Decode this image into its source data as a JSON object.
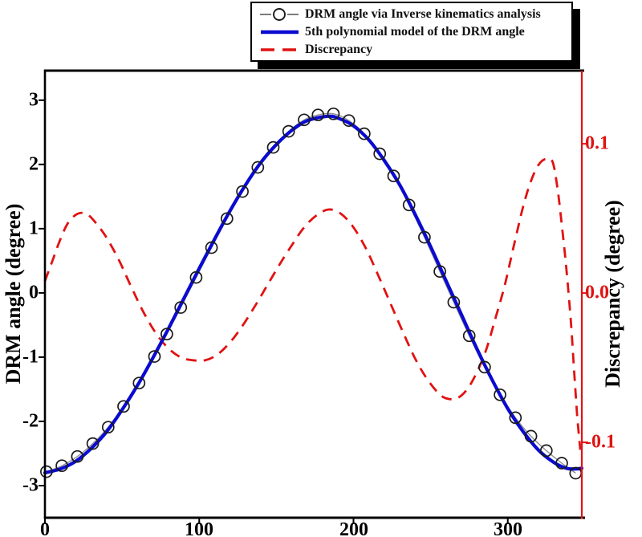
{
  "legend": {
    "items": [
      {
        "label": "DRM angle via Inverse kinematics analysis",
        "marker": "line-circle-line",
        "line_color": "#6e6e6e",
        "marker_color": "#1a1a1a"
      },
      {
        "label": "5th polynomial model of the DRM angle",
        "marker": "solid-line",
        "line_color": "#0a0ad0"
      },
      {
        "label": "Discrepancy",
        "marker": "dashed-line",
        "line_color": "#e11212"
      }
    ]
  },
  "chart_data": {
    "type": "line",
    "grid": false,
    "legend_position": "top-right-outside",
    "x_axis": {
      "ticks": [
        0,
        100,
        200,
        300
      ],
      "range": [
        0,
        348
      ]
    },
    "y_left": {
      "label": "DRM angle (degree)",
      "ticks": [
        3,
        2,
        1,
        0,
        -1,
        -2,
        -3
      ],
      "range": [
        -3.5,
        3.46
      ],
      "color": "#000000"
    },
    "y_right": {
      "label": "Discrepancy (degree)",
      "ticks": [
        "0.1",
        "0.0",
        "-0.1"
      ],
      "tick_values": [
        0.1,
        0.0,
        -0.1
      ],
      "range": [
        -0.1505,
        0.149
      ],
      "color": "#e11212"
    },
    "series": [
      {
        "name": "DRM angle via Inverse kinematics analysis",
        "type": "scatter",
        "axis": "left",
        "marker": "open-circle",
        "marker_color": "#1a1a1a",
        "connector_color": "#8f8f8f",
        "x": [
          1,
          11,
          21,
          31,
          41,
          51,
          61,
          71,
          79,
          88,
          98,
          108,
          118,
          128,
          138,
          148,
          158,
          168,
          177,
          187,
          197,
          207,
          217,
          226,
          236,
          246,
          256,
          265,
          275,
          285,
          295,
          305,
          315,
          325,
          335,
          344
        ],
        "y_rule": "model(x) + discrepancy(x)"
      },
      {
        "name": "5th polynomial model of the DRM angle",
        "type": "line",
        "axis": "left",
        "color": "#0a0ad0",
        "width": 4.2,
        "points": [
          [
            0,
            -2.8
          ],
          [
            10,
            -2.74
          ],
          [
            20,
            -2.62
          ],
          [
            30,
            -2.42
          ],
          [
            40,
            -2.16
          ],
          [
            50,
            -1.82
          ],
          [
            60,
            -1.44
          ],
          [
            70,
            -1.01
          ],
          [
            80,
            -0.56
          ],
          [
            90,
            -0.09
          ],
          [
            100,
            0.38
          ],
          [
            110,
            0.84
          ],
          [
            120,
            1.28
          ],
          [
            130,
            1.68
          ],
          [
            140,
            2.03
          ],
          [
            150,
            2.31
          ],
          [
            160,
            2.53
          ],
          [
            170,
            2.68
          ],
          [
            183,
            2.75
          ],
          [
            190,
            2.72
          ],
          [
            200,
            2.6
          ],
          [
            210,
            2.38
          ],
          [
            220,
            2.06
          ],
          [
            230,
            1.68
          ],
          [
            240,
            1.22
          ],
          [
            250,
            0.72
          ],
          [
            260,
            0.19
          ],
          [
            270,
            -0.34
          ],
          [
            280,
            -0.87
          ],
          [
            290,
            -1.36
          ],
          [
            300,
            -1.8
          ],
          [
            310,
            -2.16
          ],
          [
            320,
            -2.45
          ],
          [
            330,
            -2.64
          ],
          [
            338,
            -2.73
          ],
          [
            344,
            -2.74
          ],
          [
            348,
            -2.73
          ]
        ]
      },
      {
        "name": "Discrepancy",
        "type": "line",
        "axis": "right",
        "color": "#e11212",
        "width": 2.8,
        "dash": [
          13,
          9
        ],
        "points": [
          [
            0,
            0.008
          ],
          [
            5,
            0.022
          ],
          [
            10,
            0.036
          ],
          [
            15,
            0.047
          ],
          [
            21,
            0.053
          ],
          [
            27,
            0.053
          ],
          [
            33,
            0.047
          ],
          [
            40,
            0.037
          ],
          [
            48,
            0.022
          ],
          [
            56,
            0.004
          ],
          [
            64,
            -0.013
          ],
          [
            72,
            -0.027
          ],
          [
            80,
            -0.037
          ],
          [
            88,
            -0.043
          ],
          [
            96,
            -0.045
          ],
          [
            104,
            -0.045
          ],
          [
            112,
            -0.041
          ],
          [
            120,
            -0.033
          ],
          [
            128,
            -0.022
          ],
          [
            136,
            -0.009
          ],
          [
            144,
            0.005
          ],
          [
            152,
            0.019
          ],
          [
            160,
            0.032
          ],
          [
            168,
            0.044
          ],
          [
            176,
            0.052
          ],
          [
            184,
            0.056
          ],
          [
            192,
            0.053
          ],
          [
            200,
            0.044
          ],
          [
            208,
            0.03
          ],
          [
            216,
            0.012
          ],
          [
            224,
            -0.007
          ],
          [
            232,
            -0.026
          ],
          [
            240,
            -0.044
          ],
          [
            248,
            -0.058
          ],
          [
            256,
            -0.068
          ],
          [
            262,
            -0.071
          ],
          [
            268,
            -0.07
          ],
          [
            274,
            -0.064
          ],
          [
            280,
            -0.053
          ],
          [
            286,
            -0.038
          ],
          [
            292,
            -0.017
          ],
          [
            298,
            0.005
          ],
          [
            304,
            0.032
          ],
          [
            310,
            0.058
          ],
          [
            315,
            0.075
          ],
          [
            320,
            0.086
          ],
          [
            325,
            0.09
          ],
          [
            329,
            0.088
          ],
          [
            332,
            0.072
          ],
          [
            335,
            0.046
          ],
          [
            338,
            0.016
          ],
          [
            341,
            -0.02
          ],
          [
            343,
            -0.052
          ],
          [
            345,
            -0.082
          ],
          [
            347,
            -0.105
          ]
        ]
      }
    ]
  }
}
